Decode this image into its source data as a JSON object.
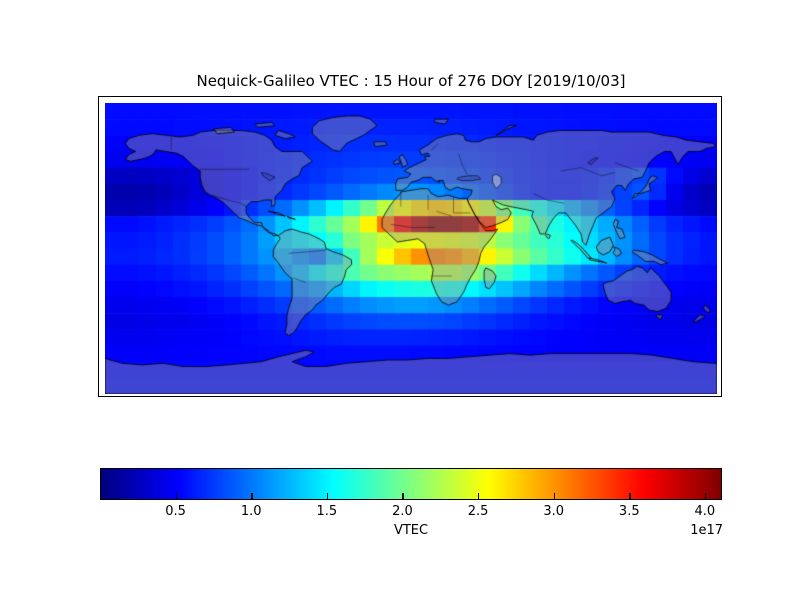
{
  "figure": {
    "title": "Nequick-Galileo VTEC : 15 Hour of 276 DOY [2019/10/03]",
    "background_color": "#ffffff"
  },
  "colorbar": {
    "label": "VTEC",
    "offset_label": "1e17",
    "ticks": [
      "0.5",
      "1.0",
      "1.5",
      "2.0",
      "2.5",
      "3.0",
      "3.5",
      "4.0"
    ],
    "tick_values": [
      0.5,
      1.0,
      1.5,
      2.0,
      2.5,
      3.0,
      3.5,
      4.0
    ],
    "vmin": 0.0,
    "vmax": 4.1,
    "colormap": "jet"
  },
  "chart_data": {
    "type": "heatmap",
    "title": "Nequick-Galileo VTEC : 15 Hour of 276 DOY [2019/10/03]",
    "colorbar_label": "VTEC",
    "scale_factor": "1e17",
    "colormap": "jet",
    "value_range": [
      0.0,
      4.1
    ],
    "projection": "equirectangular",
    "lon_range": [
      -180,
      180
    ],
    "lat_range": [
      -90,
      90
    ],
    "lon_centers": [
      -175,
      -165,
      -155,
      -145,
      -135,
      -125,
      -115,
      -105,
      -95,
      -85,
      -75,
      -65,
      -55,
      -45,
      -35,
      -25,
      -15,
      -5,
      5,
      15,
      25,
      35,
      45,
      55,
      65,
      75,
      85,
      95,
      105,
      115,
      125,
      135,
      145,
      155,
      165,
      175
    ],
    "lat_centers": [
      85,
      75,
      65,
      55,
      45,
      35,
      25,
      15,
      5,
      -5,
      -15,
      -25,
      -35,
      -45,
      -55,
      -65,
      -75,
      -85
    ],
    "values_1e17": [
      [
        0.56,
        0.56,
        0.56,
        0.56,
        0.56,
        0.57,
        0.57,
        0.57,
        0.58,
        0.58,
        0.58,
        0.59,
        0.59,
        0.6,
        0.6,
        0.6,
        0.6,
        0.6,
        0.6,
        0.6,
        0.6,
        0.59,
        0.59,
        0.59,
        0.58,
        0.58,
        0.58,
        0.57,
        0.57,
        0.57,
        0.56,
        0.56,
        0.56,
        0.56,
        0.56,
        0.56
      ],
      [
        0.55,
        0.55,
        0.55,
        0.55,
        0.56,
        0.56,
        0.57,
        0.58,
        0.59,
        0.6,
        0.61,
        0.62,
        0.63,
        0.64,
        0.64,
        0.65,
        0.65,
        0.65,
        0.65,
        0.64,
        0.64,
        0.63,
        0.62,
        0.61,
        0.6,
        0.6,
        0.59,
        0.58,
        0.57,
        0.57,
        0.56,
        0.56,
        0.55,
        0.55,
        0.55,
        0.55
      ],
      [
        0.5,
        0.5,
        0.5,
        0.51,
        0.52,
        0.53,
        0.54,
        0.56,
        0.58,
        0.6,
        0.62,
        0.64,
        0.66,
        0.67,
        0.69,
        0.7,
        0.7,
        0.7,
        0.7,
        0.69,
        0.68,
        0.67,
        0.65,
        0.63,
        0.62,
        0.6,
        0.59,
        0.58,
        0.57,
        0.56,
        0.55,
        0.54,
        0.53,
        0.52,
        0.51,
        0.5
      ],
      [
        0.45,
        0.45,
        0.46,
        0.47,
        0.48,
        0.5,
        0.52,
        0.55,
        0.57,
        0.6,
        0.63,
        0.66,
        0.69,
        0.71,
        0.73,
        0.75,
        0.76,
        0.76,
        0.75,
        0.74,
        0.73,
        0.71,
        0.69,
        0.66,
        0.64,
        0.61,
        0.59,
        0.57,
        0.56,
        0.55,
        0.54,
        0.53,
        0.52,
        0.5,
        0.47,
        0.46
      ],
      [
        0.28,
        0.27,
        0.28,
        0.3,
        0.33,
        0.38,
        0.44,
        0.5,
        0.55,
        0.6,
        0.64,
        0.68,
        0.72,
        0.76,
        0.8,
        0.83,
        0.85,
        0.86,
        0.85,
        0.83,
        0.8,
        0.77,
        0.73,
        0.69,
        0.65,
        0.62,
        0.6,
        0.6,
        0.62,
        0.67,
        0.74,
        0.8,
        0.72,
        0.55,
        0.42,
        0.33
      ],
      [
        0.18,
        0.18,
        0.2,
        0.24,
        0.3,
        0.36,
        0.43,
        0.5,
        0.56,
        0.62,
        0.68,
        0.74,
        0.8,
        0.87,
        0.94,
        1.0,
        1.06,
        1.1,
        1.1,
        1.06,
        1.0,
        0.92,
        0.84,
        0.76,
        0.68,
        0.62,
        0.6,
        0.6,
        0.64,
        0.7,
        0.78,
        0.85,
        0.68,
        0.45,
        0.3,
        0.22
      ],
      [
        0.22,
        0.22,
        0.25,
        0.3,
        0.36,
        0.43,
        0.51,
        0.6,
        0.7,
        0.82,
        0.95,
        1.1,
        1.28,
        1.5,
        1.75,
        2.0,
        2.3,
        2.55,
        2.7,
        2.78,
        2.75,
        2.6,
        2.35,
        2.05,
        1.8,
        1.6,
        1.4,
        1.2,
        1.05,
        0.9,
        0.78,
        0.66,
        0.52,
        0.4,
        0.32,
        0.26
      ],
      [
        0.55,
        0.55,
        0.58,
        0.62,
        0.66,
        0.7,
        0.76,
        0.84,
        0.95,
        1.1,
        1.3,
        1.5,
        1.72,
        1.95,
        2.2,
        2.6,
        3.1,
        3.6,
        3.9,
        4.05,
        4.05,
        3.95,
        3.4,
        2.6,
        2.1,
        1.85,
        1.65,
        1.5,
        1.35,
        1.2,
        1.05,
        0.9,
        0.75,
        0.65,
        0.6,
        0.55
      ],
      [
        0.6,
        0.6,
        0.62,
        0.65,
        0.7,
        0.75,
        0.82,
        0.9,
        1.0,
        1.15,
        1.35,
        1.45,
        1.55,
        1.7,
        2.05,
        2.2,
        2.35,
        2.45,
        2.5,
        2.5,
        2.45,
        2.4,
        2.3,
        2.1,
        1.95,
        1.8,
        1.7,
        1.55,
        1.4,
        1.25,
        1.1,
        0.95,
        0.8,
        0.7,
        0.65,
        0.6
      ],
      [
        0.62,
        0.62,
        0.64,
        0.67,
        0.7,
        0.76,
        0.82,
        0.9,
        1.0,
        1.1,
        1.2,
        1.08,
        1.0,
        1.3,
        1.8,
        2.2,
        2.55,
        2.8,
        3.0,
        3.05,
        3.0,
        2.85,
        2.6,
        2.35,
        2.1,
        1.9,
        1.75,
        1.6,
        1.45,
        1.25,
        1.08,
        0.92,
        0.8,
        0.7,
        0.64,
        0.6
      ],
      [
        0.56,
        0.56,
        0.58,
        0.6,
        0.64,
        0.68,
        0.73,
        0.8,
        0.88,
        0.98,
        1.1,
        1.25,
        1.45,
        1.65,
        1.85,
        2.0,
        2.1,
        2.15,
        2.2,
        2.25,
        2.25,
        2.15,
        2.0,
        1.8,
        1.6,
        1.4,
        1.25,
        1.1,
        0.98,
        0.86,
        0.76,
        0.68,
        0.62,
        0.58,
        0.55,
        0.54
      ],
      [
        0.5,
        0.5,
        0.52,
        0.54,
        0.57,
        0.6,
        0.65,
        0.7,
        0.77,
        0.85,
        0.93,
        1.02,
        1.12,
        1.25,
        1.38,
        1.5,
        1.58,
        1.62,
        1.65,
        1.65,
        1.6,
        1.52,
        1.42,
        1.3,
        1.18,
        1.05,
        0.95,
        0.85,
        0.76,
        0.68,
        0.62,
        0.57,
        0.54,
        0.52,
        0.5,
        0.49
      ],
      [
        0.45,
        0.45,
        0.46,
        0.47,
        0.49,
        0.52,
        0.55,
        0.59,
        0.64,
        0.69,
        0.75,
        0.81,
        0.88,
        0.95,
        1.02,
        1.08,
        1.12,
        1.15,
        1.15,
        1.12,
        1.08,
        1.02,
        0.95,
        0.88,
        0.8,
        0.73,
        0.67,
        0.61,
        0.57,
        0.53,
        0.5,
        0.48,
        0.46,
        0.45,
        0.44,
        0.44
      ],
      [
        0.42,
        0.42,
        0.43,
        0.44,
        0.45,
        0.47,
        0.49,
        0.52,
        0.55,
        0.59,
        0.62,
        0.66,
        0.7,
        0.74,
        0.78,
        0.8,
        0.82,
        0.83,
        0.83,
        0.81,
        0.79,
        0.75,
        0.72,
        0.68,
        0.64,
        0.6,
        0.57,
        0.54,
        0.51,
        0.49,
        0.47,
        0.45,
        0.44,
        0.43,
        0.42,
        0.42
      ],
      [
        0.46,
        0.46,
        0.46,
        0.47,
        0.48,
        0.49,
        0.5,
        0.52,
        0.54,
        0.56,
        0.58,
        0.6,
        0.62,
        0.64,
        0.65,
        0.66,
        0.66,
        0.66,
        0.65,
        0.64,
        0.63,
        0.61,
        0.59,
        0.57,
        0.55,
        0.54,
        0.52,
        0.51,
        0.5,
        0.49,
        0.48,
        0.47,
        0.46,
        0.46,
        0.45,
        0.45
      ],
      [
        0.5,
        0.5,
        0.5,
        0.5,
        0.51,
        0.51,
        0.52,
        0.52,
        0.53,
        0.54,
        0.54,
        0.55,
        0.55,
        0.56,
        0.56,
        0.56,
        0.56,
        0.56,
        0.55,
        0.55,
        0.54,
        0.54,
        0.53,
        0.53,
        0.52,
        0.52,
        0.51,
        0.51,
        0.5,
        0.5,
        0.5,
        0.5,
        0.49,
        0.49,
        0.49,
        0.49
      ],
      [
        0.54,
        0.54,
        0.54,
        0.54,
        0.54,
        0.54,
        0.54,
        0.54,
        0.54,
        0.54,
        0.54,
        0.54,
        0.54,
        0.54,
        0.54,
        0.54,
        0.54,
        0.54,
        0.54,
        0.54,
        0.54,
        0.54,
        0.54,
        0.54,
        0.54,
        0.54,
        0.54,
        0.54,
        0.54,
        0.54,
        0.54,
        0.54,
        0.54,
        0.54,
        0.54,
        0.54
      ],
      [
        0.56,
        0.56,
        0.56,
        0.56,
        0.56,
        0.56,
        0.56,
        0.56,
        0.56,
        0.56,
        0.56,
        0.56,
        0.56,
        0.56,
        0.56,
        0.56,
        0.56,
        0.56,
        0.56,
        0.56,
        0.56,
        0.56,
        0.56,
        0.56,
        0.56,
        0.56,
        0.56,
        0.56,
        0.56,
        0.56,
        0.56,
        0.56,
        0.56,
        0.56,
        0.56,
        0.56
      ]
    ],
    "map_overlay": {
      "land_fill": "rgba(150,150,150,0.42)",
      "coastline_color": "#000000",
      "lake_fill": "rgba(195,205,220,0.55)"
    }
  }
}
